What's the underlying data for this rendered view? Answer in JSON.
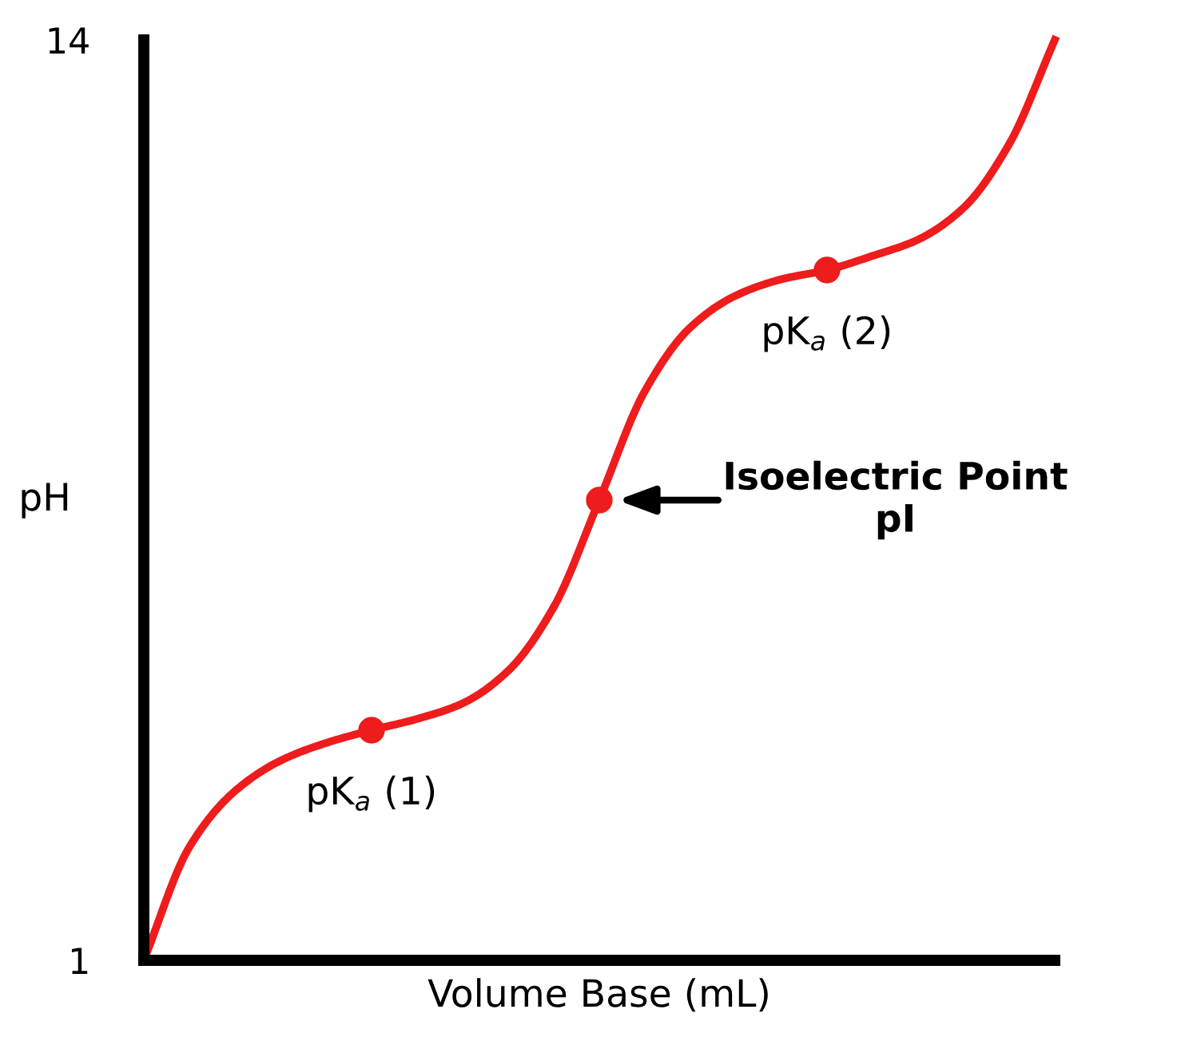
{
  "chart_data": {
    "type": "line",
    "xlabel": "Volume Base (mL)",
    "ylabel": "pH",
    "categories": [
      null,
      null,
      null,
      null,
      null,
      null,
      null,
      null,
      null,
      null,
      null,
      null,
      null,
      null,
      null,
      null,
      null,
      null,
      null,
      null,
      null
    ],
    "series": [
      {
        "color": "#ee1c1c",
        "values": [
          1,
          2.6,
          3.39,
          3.82,
          4.07,
          4.25,
          4.41,
          4.63,
          5.09,
          5.99,
          7.5,
          9.04,
          9.94,
          10.39,
          10.62,
          10.75,
          10.95,
          11.18,
          11.63,
          12.53,
          14
        ]
      },
      {
        "type": "scatter",
        "color": "#ee1c1c",
        "marker": "circle",
        "values": [
          null,
          null,
          null,
          null,
          null,
          4.25,
          null,
          null,
          null,
          null,
          7.5,
          null,
          null,
          null,
          null,
          10.75,
          null,
          null,
          null,
          null,
          null
        ]
      }
    ],
    "ylim": [
      1,
      14
    ],
    "yticks": [
      1,
      14
    ],
    "grid": false,
    "tick_labels": "y",
    "annotations": [
      "pK$_{a}$ (1)",
      "Isoelectric Point\npI",
      "pK$_{a}$ (2)"
    ]
  }
}
